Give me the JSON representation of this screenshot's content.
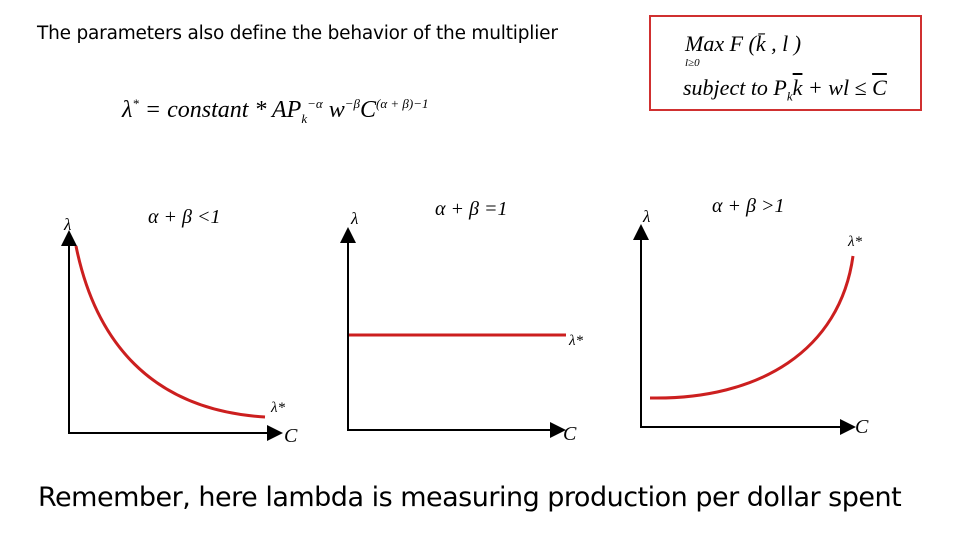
{
  "slide": {
    "title": "The parameters also define the behavior of the multiplier",
    "footer": "Remember, here lambda is measuring production per dollar spent"
  },
  "equation": {
    "lhs": "λ",
    "lhs_sup": "*",
    "body": " = constant * AP",
    "p_sub": "k",
    "p_sup": "−α",
    "w": " w",
    "w_sup": "−β",
    "c": "C",
    "c_sup": "(α + β)−1"
  },
  "problem_box": {
    "max": "Max F",
    "args": "(k̄ , l )",
    "under": "l≥0",
    "subject": "subject to  P",
    "p_sub": "k",
    "k": "k",
    "rest": " + wl ≤ ",
    "c": "C"
  },
  "charts": [
    {
      "condition": "α + β <1",
      "y_label": "λ",
      "x_label": "C",
      "curve_label": "λ*",
      "shape": "decreasing"
    },
    {
      "condition": "α + β =1",
      "y_label": "λ",
      "x_label": "C",
      "curve_label": "λ*",
      "shape": "constant"
    },
    {
      "condition": "α + β >1",
      "y_label": "λ",
      "x_label": "C",
      "curve_label": "λ*",
      "shape": "increasing"
    }
  ],
  "colors": {
    "curve": "#cc1f1f",
    "box_border": "#d03030",
    "axis": "#000000"
  }
}
